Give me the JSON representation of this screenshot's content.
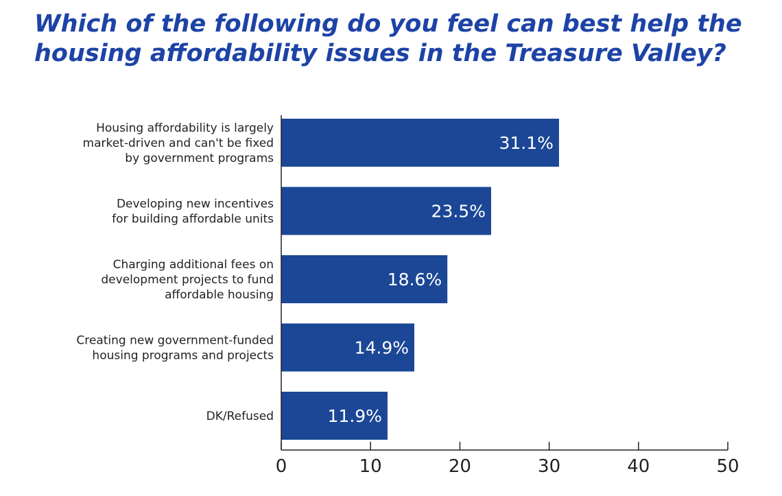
{
  "chart_data": {
    "type": "bar",
    "orientation": "horizontal",
    "title": "Which of the following do you feel can best help the housing affordability issues in the Treasure Valley?",
    "categories": [
      [
        "Housing affordability is largely",
        "market-driven and can't be fixed",
        "by government programs"
      ],
      [
        "Developing new incentives",
        "for building affordable units"
      ],
      [
        "Charging additional fees on",
        "development projects to fund",
        "affordable housing"
      ],
      [
        "Creating new government-funded",
        "housing programs and projects"
      ],
      [
        "DK/Refused"
      ]
    ],
    "values": [
      31.1,
      23.5,
      18.6,
      14.9,
      11.9
    ],
    "data_labels": [
      "31.1%",
      "23.5%",
      "18.6%",
      "14.9%",
      "11.9%"
    ],
    "xlim": [
      0,
      50
    ],
    "xticks": [
      0,
      10,
      20,
      30,
      40,
      50
    ],
    "grid": false,
    "bar_color": "#1b4796",
    "title_color": "#1d43a6"
  }
}
